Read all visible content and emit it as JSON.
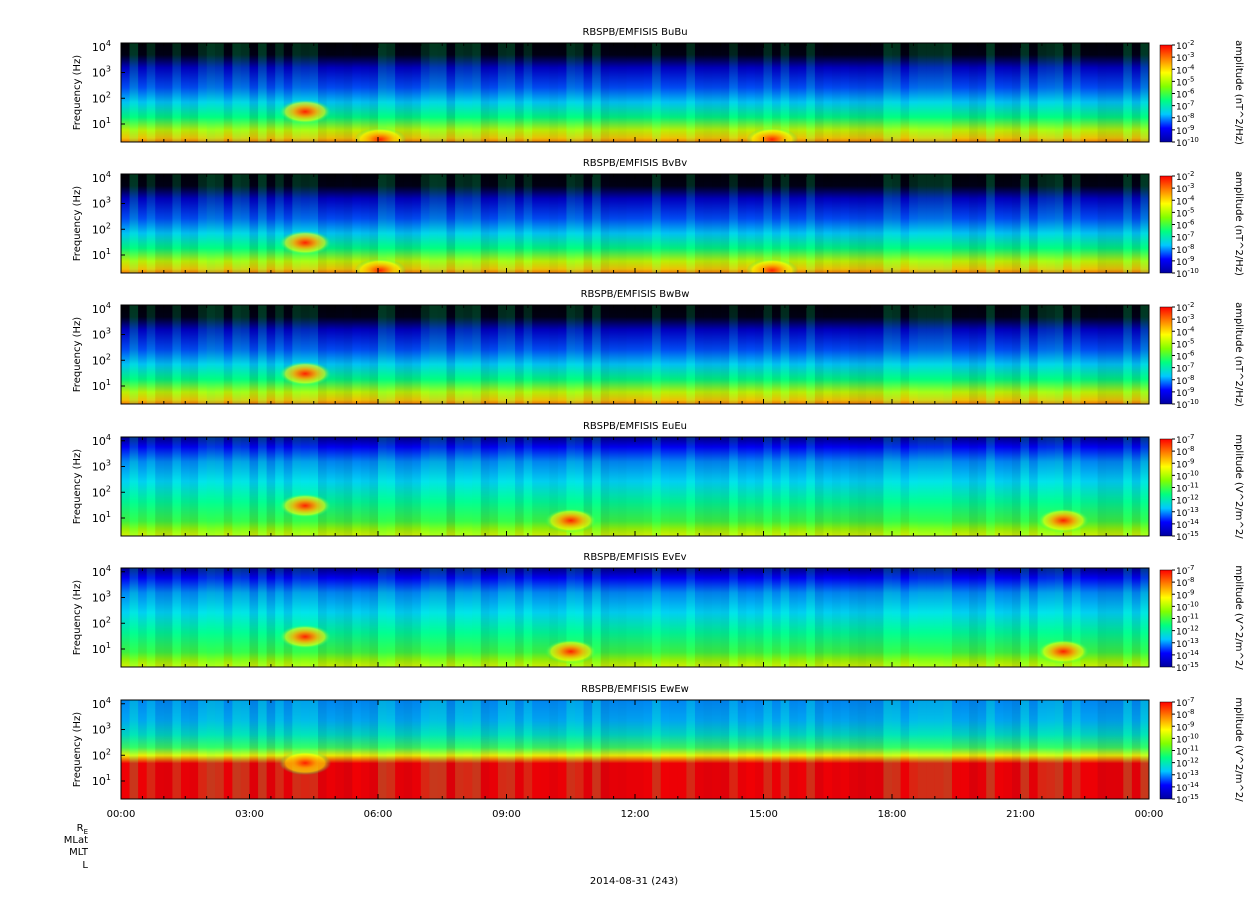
{
  "chart_data": {
    "type": "heatmap",
    "panels": [
      {
        "title": "RBSPB/EMFISIS  BuBu",
        "ylabel": "Frequency (Hz)",
        "ylim": [
          2,
          14000
        ],
        "yscale": "log",
        "cbar_label": "amplitude (nT^2/Hz)",
        "cbar_ticks": [
          "-2",
          "-3",
          "-4",
          "-5",
          "-6",
          "-7",
          "-8",
          "-9",
          "-10"
        ],
        "kind": "B",
        "dense_bands": [
          [
            4.3,
            30
          ],
          [
            6.05,
            2.5
          ],
          [
            15.2,
            2.5
          ]
        ]
      },
      {
        "title": "RBSPB/EMFISIS  BvBv",
        "ylabel": "Frequency (Hz)",
        "ylim": [
          2,
          14000
        ],
        "yscale": "log",
        "cbar_label": "amplitude (nT^2/Hz)",
        "cbar_ticks": [
          "-2",
          "-3",
          "-4",
          "-5",
          "-6",
          "-7",
          "-8",
          "-9",
          "-10"
        ],
        "kind": "B",
        "dense_bands": [
          [
            4.3,
            30
          ],
          [
            6.05,
            2.5
          ],
          [
            15.2,
            2.5
          ]
        ]
      },
      {
        "title": "RBSPB/EMFISIS  BwBw",
        "ylabel": "Frequency (Hz)",
        "ylim": [
          2,
          14000
        ],
        "yscale": "log",
        "cbar_label": "amplitude (nT^2/Hz)",
        "cbar_ticks": [
          "-2",
          "-3",
          "-4",
          "-5",
          "-6",
          "-7",
          "-8",
          "-9",
          "-10"
        ],
        "kind": "B",
        "dense_bands": [
          [
            4.3,
            30
          ]
        ]
      },
      {
        "title": "RBSPB/EMFISIS  EuEu",
        "ylabel": "Frequency (Hz)",
        "ylim": [
          2,
          14000
        ],
        "yscale": "log",
        "cbar_label": "mplitude (V^2/m^2/",
        "cbar_ticks": [
          "-7",
          "-8",
          "-9",
          "-10",
          "-11",
          "-12",
          "-13",
          "-14",
          "-15"
        ],
        "kind": "E",
        "dense_bands": [
          [
            4.3,
            30
          ],
          [
            10.5,
            8
          ],
          [
            22.0,
            8
          ]
        ]
      },
      {
        "title": "RBSPB/EMFISIS  EvEv",
        "ylabel": "Frequency (Hz)",
        "ylim": [
          2,
          14000
        ],
        "yscale": "log",
        "cbar_label": "mplitude (V^2/m^2/",
        "cbar_ticks": [
          "-7",
          "-8",
          "-9",
          "-10",
          "-11",
          "-12",
          "-13",
          "-14",
          "-15"
        ],
        "kind": "E",
        "dense_bands": [
          [
            4.3,
            30
          ],
          [
            10.5,
            8
          ],
          [
            22.0,
            8
          ]
        ]
      },
      {
        "title": "RBSPB/EMFISIS  EwEw",
        "ylabel": "Frequency (Hz)",
        "ylim": [
          2,
          14000
        ],
        "yscale": "log",
        "cbar_label": "mplitude (V^2/m^2/",
        "cbar_ticks": [
          "-7",
          "-8",
          "-9",
          "-10",
          "-11",
          "-12",
          "-13",
          "-14",
          "-15"
        ],
        "kind": "Ew",
        "dense_bands": [
          [
            4.3,
            50
          ]
        ]
      }
    ],
    "ytick_labels": [
      "10",
      "10",
      "10",
      "10"
    ],
    "ytick_exponents": [
      "1",
      "2",
      "3",
      "4"
    ],
    "ytick_values": [
      10,
      100,
      1000,
      10000
    ],
    "xtick_labels": [
      "00:00",
      "03:00",
      "06:00",
      "09:00",
      "12:00",
      "15:00",
      "18:00",
      "21:00",
      "00:00"
    ],
    "xtick_hours": [
      0,
      3,
      6,
      9,
      12,
      15,
      18,
      21,
      24
    ],
    "xlim_hours": [
      0,
      24
    ],
    "ephem_labels": [
      "R",
      "MLat",
      "MLT",
      "L"
    ],
    "ephem_r_subscript": "E",
    "xlabel": "2014-08-31 (243)",
    "cbar_base": "10",
    "colormap": [
      "#0000a0",
      "#0000ff",
      "#00c8ff",
      "#00ff80",
      "#80ff00",
      "#ffff00",
      "#ff8000",
      "#ff0000"
    ]
  }
}
